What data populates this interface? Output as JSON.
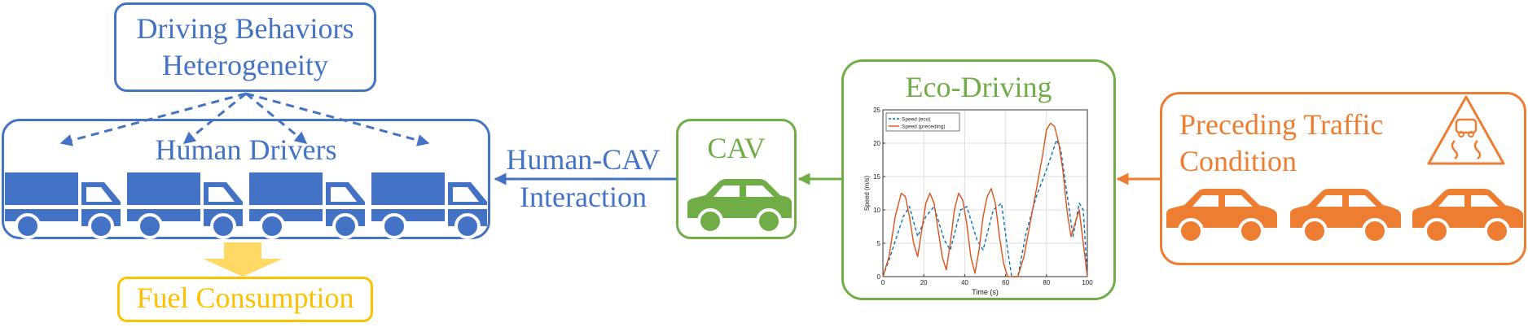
{
  "colors": {
    "blue": "#4472C4",
    "green": "#70AD47",
    "orange": "#ED7D31",
    "yellow": "#FFC000",
    "arrow_yellow": "#FFD966"
  },
  "behaviors": {
    "line1": "Driving Behaviors",
    "line2": "Heterogeneity"
  },
  "human": {
    "title": "Human Drivers",
    "vehicle_icon": "truck-icon"
  },
  "fuel": {
    "label": "Fuel Consumption"
  },
  "interaction": {
    "line1": "Human-CAV",
    "line2": "Interaction"
  },
  "cav": {
    "label": "CAV",
    "vehicle_icon": "car-icon"
  },
  "eco": {
    "title": "Eco-Driving"
  },
  "preceding": {
    "line1": "Preceding Traffic",
    "line2": "Condition",
    "warning_icon": "slippery-road-warning-icon",
    "vehicle_icon": "car-icon"
  },
  "chart_data": {
    "type": "line",
    "xlabel": "Time (s)",
    "ylabel": "Speed (m/s)",
    "xlim": [
      0,
      100
    ],
    "ylim": [
      0,
      25
    ],
    "xticks": [
      0,
      20,
      40,
      60,
      80,
      100
    ],
    "yticks": [
      0,
      5,
      10,
      15,
      20,
      25
    ],
    "grid": true,
    "legend": "top-left",
    "series": [
      {
        "name": "Speed (eco)",
        "color": "#0072BD",
        "style": "dashed",
        "x": [
          0,
          3,
          10,
          13,
          17,
          21,
          25,
          30,
          33,
          38,
          41,
          46,
          49,
          54,
          58,
          61,
          63,
          66,
          70,
          75,
          80,
          85,
          87,
          93,
          96,
          98,
          100
        ],
        "y": [
          0,
          2.5,
          9,
          10.5,
          6,
          9,
          10.5,
          5.5,
          4,
          10,
          10.5,
          5.5,
          4,
          10,
          11,
          4,
          0,
          0,
          6.5,
          12,
          16,
          20.5,
          19,
          6,
          11,
          10,
          0
        ]
      },
      {
        "name": "Speed (preceding)",
        "color": "#D95319",
        "style": "solid",
        "x": [
          0,
          3,
          6,
          9,
          11,
          13,
          15,
          17,
          19,
          21,
          23,
          25,
          27,
          29,
          31,
          33,
          35,
          37,
          39,
          41,
          43,
          45,
          47,
          49,
          51,
          53,
          55,
          57,
          59,
          61,
          62,
          63,
          64,
          66,
          69,
          72,
          75,
          78,
          80,
          82,
          84,
          86,
          88,
          90,
          92,
          94,
          96,
          98,
          100
        ],
        "y": [
          0,
          3,
          9,
          12.5,
          12,
          9,
          5,
          3,
          7,
          11,
          12.5,
          11,
          7,
          3,
          1,
          5,
          10,
          12.5,
          11.5,
          8,
          3,
          0.5,
          4,
          9,
          12,
          13.2,
          11,
          6,
          2,
          0,
          0,
          0,
          0,
          0,
          3,
          8,
          13,
          18,
          22,
          23,
          22.5,
          20,
          16,
          10,
          6,
          8,
          10,
          5,
          0
        ]
      }
    ]
  }
}
